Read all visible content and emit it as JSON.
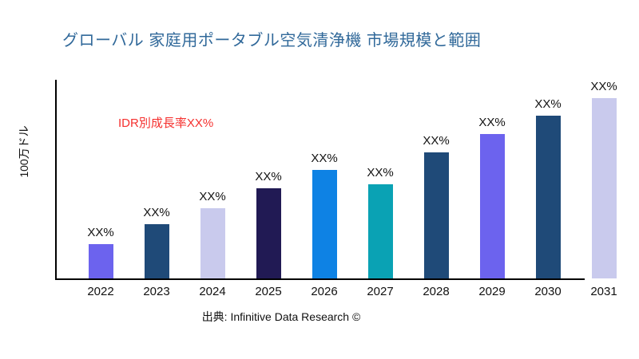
{
  "title": {
    "text": "グローバル 家庭用ポータブル空気清浄機 市場規模と範囲",
    "color": "#31699A"
  },
  "annotation": {
    "text": "IDR別成長率XX%",
    "color": "#F5302E"
  },
  "y_axis_label": "100万ドル",
  "source": "出典: Infinitive Data Research ©",
  "chart_data": {
    "type": "bar",
    "title": "グローバル 家庭用ポータブル空気清浄機 市場規模と範囲",
    "categories": [
      "2022",
      "2023",
      "2024",
      "2025",
      "2026",
      "2027",
      "2028",
      "2029",
      "2030",
      "2031"
    ],
    "values": [
      19,
      30,
      39,
      50,
      60,
      52,
      70,
      80,
      90,
      100
    ],
    "value_note": "no numeric y-axis shown; values estimated relative to tallest bar (2031 = 100)",
    "bar_label": "XX%",
    "bar_colors": [
      "#6C63EE",
      "#1F4A78",
      "#C9CAED",
      "#211A54",
      "#0E82E4",
      "#0AA2B4",
      "#1F4A78",
      "#6C63EE",
      "#1F4A78",
      "#C9CAED"
    ],
    "xlabel": "",
    "ylabel": "100万ドル",
    "ylim": [
      0,
      110
    ],
    "grid": false,
    "legend": false,
    "annotation": "IDR別成長率XX%"
  }
}
